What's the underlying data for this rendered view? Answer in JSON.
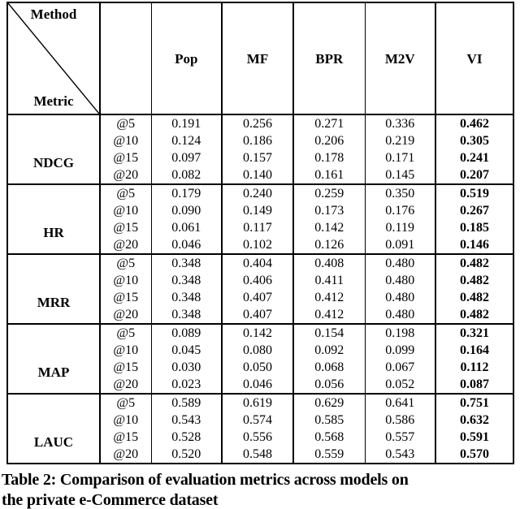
{
  "header": {
    "method_label": "Method",
    "metric_label": "Metric",
    "columns": [
      "Pop",
      "MF",
      "BPR",
      "M2V",
      "VI"
    ],
    "bold_model": "VI"
  },
  "metrics": [
    {
      "name": "NDCG",
      "rows": [
        {
          "k": "@5",
          "values": [
            "0.191",
            "0.256",
            "0.271",
            "0.336",
            "0.462"
          ]
        },
        {
          "k": "@10",
          "values": [
            "0.124",
            "0.186",
            "0.206",
            "0.219",
            "0.305"
          ]
        },
        {
          "k": "@15",
          "values": [
            "0.097",
            "0.157",
            "0.178",
            "0.171",
            "0.241"
          ]
        },
        {
          "k": "@20",
          "values": [
            "0.082",
            "0.140",
            "0.161",
            "0.145",
            "0.207"
          ]
        }
      ]
    },
    {
      "name": "HR",
      "rows": [
        {
          "k": "@5",
          "values": [
            "0.179",
            "0.240",
            "0.259",
            "0.350",
            "0.519"
          ]
        },
        {
          "k": "@10",
          "values": [
            "0.090",
            "0.149",
            "0.173",
            "0.176",
            "0.267"
          ]
        },
        {
          "k": "@15",
          "values": [
            "0.061",
            "0.117",
            "0.142",
            "0.119",
            "0.185"
          ]
        },
        {
          "k": "@20",
          "values": [
            "0.046",
            "0.102",
            "0.126",
            "0.091",
            "0.146"
          ]
        }
      ]
    },
    {
      "name": "MRR",
      "rows": [
        {
          "k": "@5",
          "values": [
            "0.348",
            "0.404",
            "0.408",
            "0.480",
            "0.482"
          ]
        },
        {
          "k": "@10",
          "values": [
            "0.348",
            "0.406",
            "0.411",
            "0.480",
            "0.482"
          ]
        },
        {
          "k": "@15",
          "values": [
            "0.348",
            "0.407",
            "0.412",
            "0.480",
            "0.482"
          ]
        },
        {
          "k": "@20",
          "values": [
            "0.348",
            "0.407",
            "0.412",
            "0.480",
            "0.482"
          ]
        }
      ]
    },
    {
      "name": "MAP",
      "rows": [
        {
          "k": "@5",
          "values": [
            "0.089",
            "0.142",
            "0.154",
            "0.198",
            "0.321"
          ]
        },
        {
          "k": "@10",
          "values": [
            "0.045",
            "0.080",
            "0.092",
            "0.099",
            "0.164"
          ]
        },
        {
          "k": "@15",
          "values": [
            "0.030",
            "0.050",
            "0.068",
            "0.067",
            "0.112"
          ]
        },
        {
          "k": "@20",
          "values": [
            "0.023",
            "0.046",
            "0.056",
            "0.052",
            "0.087"
          ]
        }
      ]
    },
    {
      "name": "LAUC",
      "rows": [
        {
          "k": "@5",
          "values": [
            "0.589",
            "0.619",
            "0.629",
            "0.641",
            "0.751"
          ]
        },
        {
          "k": "@10",
          "values": [
            "0.543",
            "0.574",
            "0.585",
            "0.586",
            "0.632"
          ]
        },
        {
          "k": "@15",
          "values": [
            "0.528",
            "0.556",
            "0.568",
            "0.557",
            "0.591"
          ]
        },
        {
          "k": "@20",
          "values": [
            "0.520",
            "0.548",
            "0.559",
            "0.543",
            "0.570"
          ]
        }
      ]
    }
  ],
  "caption_lines": [
    "Table 2: Comparison of evaluation metrics across models on",
    "the private e-Commerce dataset"
  ],
  "colors": {
    "text": "#000000",
    "background": "#ffffff",
    "rule": "#000000"
  }
}
